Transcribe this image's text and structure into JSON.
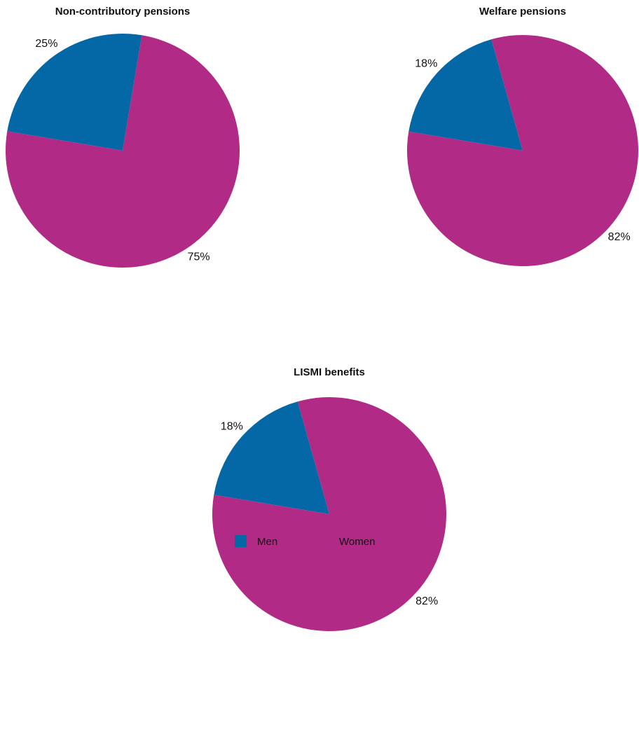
{
  "chart_data": [
    {
      "type": "pie",
      "title": "Non-contributory pensions",
      "values": [
        25,
        75
      ],
      "value_labels": [
        "25%",
        "75%"
      ]
    },
    {
      "type": "pie",
      "title": "Welfare pensions",
      "values": [
        18,
        82
      ],
      "value_labels": [
        "18%",
        "82%"
      ]
    },
    {
      "type": "pie",
      "title": "LISMI benefits",
      "values": [
        18,
        82
      ],
      "value_labels": [
        "18%",
        "82%"
      ]
    }
  ],
  "legend": {
    "entries": [
      {
        "name": "Men",
        "color": "#0568a6"
      },
      {
        "name": "Women",
        "color": "#b12a86"
      }
    ]
  }
}
